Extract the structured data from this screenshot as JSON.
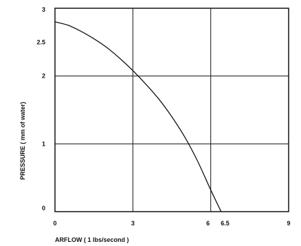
{
  "chart_data": {
    "type": "line",
    "title": "",
    "xlabel": "ARFLOW ( 1 lbs/second )",
    "ylabel": "PRESSURE ( mm of water)",
    "xlim": [
      0,
      9
    ],
    "ylim": [
      0,
      3
    ],
    "x_ticks": [
      "0",
      "3",
      "6",
      "6.5",
      "9"
    ],
    "x_tick_values": [
      0,
      3,
      6,
      6.5,
      9
    ],
    "y_ticks": [
      "0",
      "1",
      "2",
      "2.5",
      "3"
    ],
    "y_tick_values": [
      0,
      1,
      2,
      2.5,
      3
    ],
    "grid": true,
    "line_color": "#111111",
    "series": [
      {
        "values": [
          {
            "x": 0.0,
            "y": 2.8
          },
          {
            "x": 0.5,
            "y": 2.75
          },
          {
            "x": 1.0,
            "y": 2.66
          },
          {
            "x": 1.5,
            "y": 2.55
          },
          {
            "x": 2.0,
            "y": 2.42
          },
          {
            "x": 2.5,
            "y": 2.26
          },
          {
            "x": 3.0,
            "y": 2.08
          },
          {
            "x": 3.5,
            "y": 1.88
          },
          {
            "x": 4.0,
            "y": 1.66
          },
          {
            "x": 4.5,
            "y": 1.4
          },
          {
            "x": 5.0,
            "y": 1.1
          },
          {
            "x": 5.5,
            "y": 0.74
          },
          {
            "x": 6.0,
            "y": 0.32
          },
          {
            "x": 6.4,
            "y": 0.0
          }
        ]
      }
    ]
  }
}
